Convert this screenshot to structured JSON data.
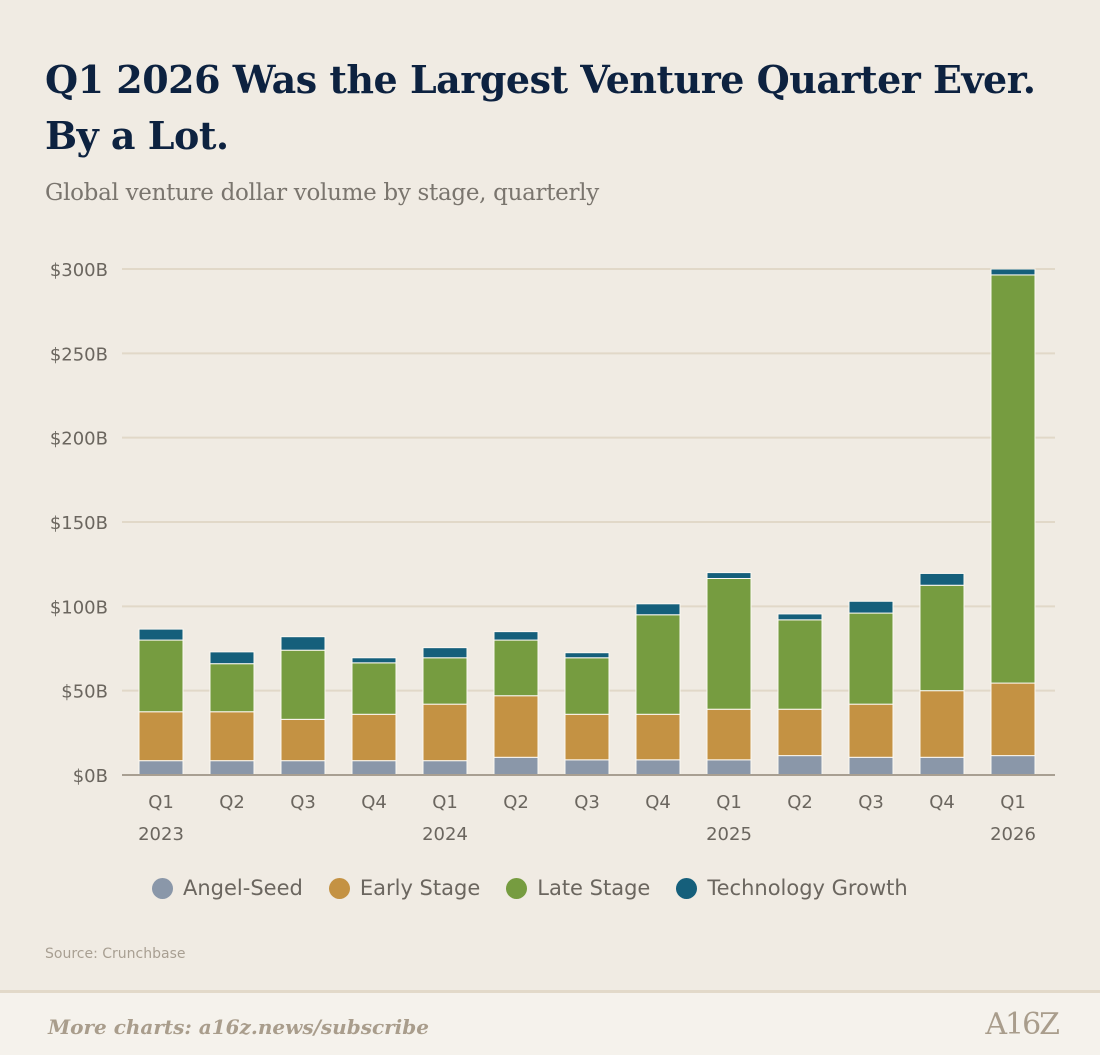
{
  "title_line1": "Q1 2026 Was the Largest Venture Quarter Ever.",
  "title_line2": "By a Lot.",
  "subtitle": "Global venture dollar volume by stage, quarterly",
  "source": "Source: Crunchbase",
  "footer": {
    "cta": "More charts: a16z.news/subscribe",
    "logo": "A16Z"
  },
  "chart_data": {
    "type": "bar",
    "stacked": true,
    "categories": [
      "Q1",
      "Q2",
      "Q3",
      "Q4",
      "Q1",
      "Q2",
      "Q3",
      "Q4",
      "Q1",
      "Q2",
      "Q3",
      "Q4",
      "Q1"
    ],
    "year_labels": [
      {
        "index": 0,
        "label": "2023"
      },
      {
        "index": 4,
        "label": "2024"
      },
      {
        "index": 8,
        "label": "2025"
      },
      {
        "index": 12,
        "label": "2026"
      }
    ],
    "ylim": [
      0,
      300
    ],
    "yticks": [
      0,
      50,
      100,
      150,
      200,
      250,
      300
    ],
    "ytick_labels": [
      "$0B",
      "$50B",
      "$100B",
      "$150B",
      "$200B",
      "$250B",
      "$300B"
    ],
    "grid": true,
    "legend_position": "bottom",
    "series": [
      {
        "name": "Angel-Seed",
        "color": "#8a97a9",
        "values": [
          8.5,
          8.5,
          8.5,
          8.5,
          8.5,
          10.5,
          9,
          9,
          9,
          11.5,
          10.5,
          10.5,
          11.5
        ]
      },
      {
        "name": "Early Stage",
        "color": "#c49243",
        "values": [
          29,
          29,
          24.5,
          27.5,
          33.5,
          36.5,
          27,
          27,
          30,
          27.5,
          31.5,
          39.5,
          43
        ]
      },
      {
        "name": "Late Stage",
        "color": "#769c40",
        "values": [
          42.5,
          28.5,
          41,
          30.5,
          27.5,
          33,
          33.5,
          59,
          77.5,
          53,
          54,
          62.5,
          242
        ]
      },
      {
        "name": "Technology Growth",
        "color": "#155f7b",
        "values": [
          6.5,
          7,
          8,
          3,
          6,
          5,
          3,
          6.5,
          3.5,
          3.5,
          7,
          7,
          3.5
        ]
      }
    ]
  }
}
